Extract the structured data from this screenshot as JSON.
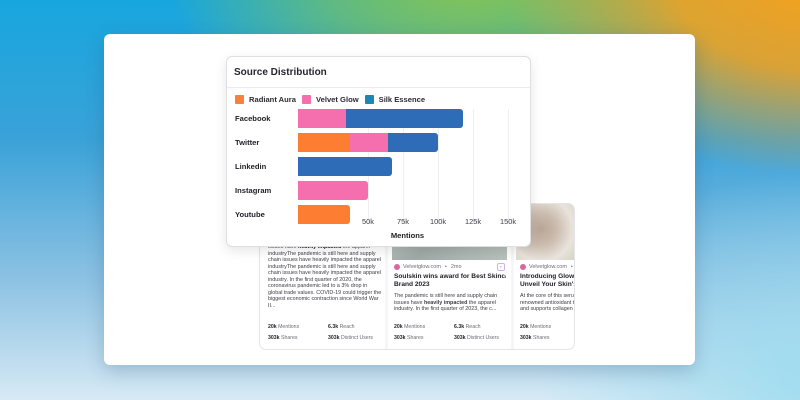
{
  "chart_card": {
    "title": "Source Distribution"
  },
  "chart_data": {
    "type": "bar",
    "orientation": "horizontal",
    "stacked": true,
    "title": "Source Distribution",
    "xlabel": "Mentions",
    "ylabel": "",
    "categories": [
      "Facebook",
      "Twitter",
      "Linkedin",
      "Instagram",
      "Youtube"
    ],
    "series": [
      {
        "name": "Radiant Aura",
        "color": "#fd7e33",
        "values": [
          0,
          37000,
          0,
          0,
          37000
        ]
      },
      {
        "name": "Velvet Glow",
        "color": "#f56fae",
        "values": [
          34000,
          27000,
          0,
          50000,
          0
        ]
      },
      {
        "name": "Silk Essence",
        "color": "#2f6cb7",
        "values": [
          84000,
          36000,
          67000,
          0,
          0
        ]
      }
    ],
    "xticks": [
      "50k",
      "75k",
      "100k",
      "125k",
      "150k"
    ],
    "xtick_values": [
      50000,
      75000,
      100000,
      125000,
      150000
    ],
    "xlim": [
      0,
      150000
    ],
    "grid": "vertical",
    "legend_position": "top-left",
    "legend_swatch_colors": {
      "Radiant Aura": "#f7813a",
      "Velvet Glow": "#f56fae",
      "Silk Essence": "#1d86b8"
    }
  },
  "news_cards": [
    {
      "excerpt_parts": [
        {
          "text": "issues have ",
          "bold": false
        },
        {
          "text": "heavily impacted",
          "bold": true
        },
        {
          "text": " the apparel industryThe pandemic is still here and supply chain issues have heavily impacted the apparel industryThe pandemic is still here and supply chain issues have heavily impacted the apparel industry. In the first quarter of 2020, the coronavirus pandemic led to a 3% drop in global trade values. COVID-19 could trigger the biggest economic contraction since World War II...",
          "bold": false
        }
      ],
      "stats": {
        "mentions": "20k",
        "mentions_label": "Mentions",
        "reach": "6.3k",
        "reach_label": "Reach",
        "shares": "303k",
        "shares_label": "Shares",
        "users": "303k",
        "users_label": "Distinct Users"
      }
    },
    {
      "source": "Velvetglow.com",
      "age": "2mo",
      "title_line1": "Soulskin wins award for Best Skincare",
      "title_line2": "Brand 2023",
      "excerpt_parts": [
        {
          "text": "The pandemic is still here and supply chain issues have ",
          "bold": false
        },
        {
          "text": "heavily impacted",
          "bold": true
        },
        {
          "text": " the apparel industry. In the first quarter of 2023, the c...",
          "bold": false
        }
      ],
      "stats": {
        "mentions": "20k",
        "mentions_label": "Mentions",
        "reach": "6.3k",
        "reach_label": "Reach",
        "shares": "303k",
        "shares_label": "Shares",
        "users": "303k",
        "users_label": "Distinct Users"
      }
    },
    {
      "source": "Velvetglow.com",
      "age": "2",
      "title_line1": "Introducing GlowGen",
      "title_line2": "Unveil Your Skin's Na",
      "excerpt": "At the core of this serum renowned antioxidant that and supports collagen pr",
      "stats": {
        "mentions": "20k",
        "mentions_label": "Mentions",
        "shares": "303k",
        "shares_label": "Shares"
      }
    }
  ]
}
